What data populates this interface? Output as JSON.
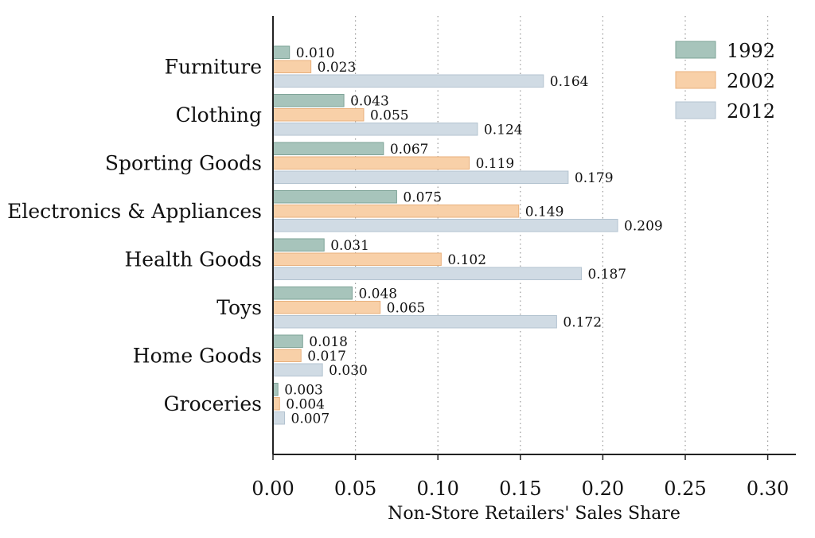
{
  "chart_data": {
    "type": "bar",
    "orientation": "horizontal",
    "title": "",
    "xlabel": "Non-Store Retailers' Sales Share",
    "ylabel": "",
    "xlim": [
      0.0,
      0.32
    ],
    "xticks": [
      0.0,
      0.05,
      0.1,
      0.15,
      0.2,
      0.25,
      0.3
    ],
    "xtick_labels": [
      "0.00",
      "0.05",
      "0.10",
      "0.15",
      "0.20",
      "0.25",
      "0.30"
    ],
    "grid": "vertical dotted",
    "legend_position": "top-right",
    "categories": [
      "Furniture",
      "Clothing",
      "Sporting Goods",
      "Electronics & Appliances",
      "Health Goods",
      "Toys",
      "Home Goods",
      "Groceries"
    ],
    "series": [
      {
        "name": "1992",
        "color": "#a7c4bb",
        "stroke": "#7ea397",
        "values": [
          0.01,
          0.043,
          0.067,
          0.075,
          0.031,
          0.048,
          0.018,
          0.003
        ],
        "labels": [
          "0.010",
          "0.043",
          "0.067",
          "0.075",
          "0.031",
          "0.048",
          "0.018",
          "0.003"
        ]
      },
      {
        "name": "2002",
        "color": "#f8d0a8",
        "stroke": "#e8b07c",
        "values": [
          0.023,
          0.055,
          0.119,
          0.149,
          0.102,
          0.065,
          0.017,
          0.004
        ],
        "labels": [
          "0.023",
          "0.055",
          "0.119",
          "0.149",
          "0.102",
          "0.065",
          "0.017",
          "0.004"
        ]
      },
      {
        "name": "2012",
        "color": "#d0dbe4",
        "stroke": "#b3c3d0",
        "values": [
          0.164,
          0.124,
          0.179,
          0.209,
          0.187,
          0.172,
          0.03,
          0.007
        ],
        "labels": [
          "0.164",
          "0.124",
          "0.179",
          "0.209",
          "0.187",
          "0.172",
          "0.030",
          "0.007"
        ]
      }
    ]
  }
}
